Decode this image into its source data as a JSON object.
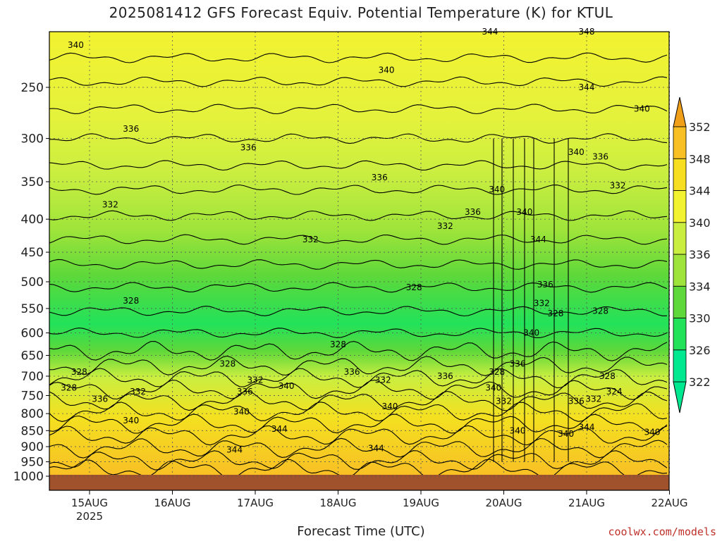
{
  "chart_data": {
    "type": "heatmap",
    "title": "2025081412 GFS Forecast Equiv. Potential Temperature (K) for KTUL",
    "xlabel": "Forecast Time (UTC)",
    "ylabel": "",
    "x_ticks": [
      "15AUG",
      "16AUG",
      "17AUG",
      "18AUG",
      "19AUG",
      "20AUG",
      "21AUG",
      "22AUG"
    ],
    "x_year_label": "2025",
    "y_ticks": [
      250,
      300,
      350,
      400,
      450,
      500,
      550,
      600,
      650,
      700,
      750,
      800,
      850,
      900,
      950,
      1000
    ],
    "ylim": [
      1000,
      200
    ],
    "y_scale": "log",
    "grid": true,
    "colorbar": {
      "levels": [
        322,
        326,
        330,
        334,
        336,
        340,
        344,
        348,
        352
      ],
      "colors": [
        "#00e890",
        "#22e25a",
        "#5ed83a",
        "#9ee43a",
        "#caee40",
        "#f2f230",
        "#f8de20",
        "#f8c024",
        "#f0a018"
      ],
      "position": "right"
    },
    "ground_color": "#a0522d",
    "contour_labels": [
      {
        "x": "14AUG 20Z",
        "y": 215,
        "text": "340"
      },
      {
        "x": "15AUG 12Z",
        "y": 290,
        "text": "336"
      },
      {
        "x": "15AUG 06Z",
        "y": 380,
        "text": "332"
      },
      {
        "x": "15AUG 12Z",
        "y": 535,
        "text": "328"
      },
      {
        "x": "14AUG 21Z",
        "y": 690,
        "text": "328"
      },
      {
        "x": "14AUG 18Z",
        "y": 730,
        "text": "328"
      },
      {
        "x": "15AUG 03Z",
        "y": 760,
        "text": "336"
      },
      {
        "x": "15AUG 14Z",
        "y": 740,
        "text": "332"
      },
      {
        "x": "15AUG 12Z",
        "y": 820,
        "text": "340"
      },
      {
        "x": "16AUG 16Z",
        "y": 670,
        "text": "328"
      },
      {
        "x": "16AUG 22Z",
        "y": 310,
        "text": "336"
      },
      {
        "x": "17AUG 16Z",
        "y": 430,
        "text": "332"
      },
      {
        "x": "17AUG 00Z",
        "y": 710,
        "text": "332"
      },
      {
        "x": "16AUG 21Z",
        "y": 740,
        "text": "336"
      },
      {
        "x": "17AUG 09Z",
        "y": 725,
        "text": "340"
      },
      {
        "x": "16AUG 20Z",
        "y": 795,
        "text": "340"
      },
      {
        "x": "17AUG 07Z",
        "y": 845,
        "text": "344"
      },
      {
        "x": "16AUG 18Z",
        "y": 910,
        "text": "344"
      },
      {
        "x": "18AUG 14Z",
        "y": 235,
        "text": "340"
      },
      {
        "x": "18AUG 12Z",
        "y": 345,
        "text": "336"
      },
      {
        "x": "18AUG 00Z",
        "y": 625,
        "text": "328"
      },
      {
        "x": "18AUG 22Z",
        "y": 510,
        "text": "328"
      },
      {
        "x": "18AUG 04Z",
        "y": 690,
        "text": "336"
      },
      {
        "x": "18AUG 13Z",
        "y": 710,
        "text": "332"
      },
      {
        "x": "18AUG 15Z",
        "y": 780,
        "text": "340"
      },
      {
        "x": "18AUG 11Z",
        "y": 905,
        "text": "344"
      },
      {
        "x": "19AUG 07Z",
        "y": 410,
        "text": "332"
      },
      {
        "x": "19AUG 15Z",
        "y": 390,
        "text": "336"
      },
      {
        "x": "19AUG 07Z",
        "y": 700,
        "text": "336"
      },
      {
        "x": "19AUG 20Z",
        "y": 205,
        "text": "344"
      },
      {
        "x": "19AUG 22Z",
        "y": 360,
        "text": "340"
      },
      {
        "x": "20AUG 06Z",
        "y": 390,
        "text": "340"
      },
      {
        "x": "20AUG 10Z",
        "y": 430,
        "text": "344"
      },
      {
        "x": "20AUG 12Z",
        "y": 505,
        "text": "336"
      },
      {
        "x": "20AUG 11Z",
        "y": 540,
        "text": "332"
      },
      {
        "x": "20AUG 15Z",
        "y": 560,
        "text": "328"
      },
      {
        "x": "20AUG 08Z",
        "y": 600,
        "text": "340"
      },
      {
        "x": "20AUG 04Z",
        "y": 670,
        "text": "336"
      },
      {
        "x": "19AUG 22Z",
        "y": 690,
        "text": "328"
      },
      {
        "x": "19AUG 21Z",
        "y": 730,
        "text": "340"
      },
      {
        "x": "20AUG 00Z",
        "y": 765,
        "text": "332"
      },
      {
        "x": "20AUG 04Z",
        "y": 850,
        "text": "340"
      },
      {
        "x": "21AUG 00Z",
        "y": 205,
        "text": "348"
      },
      {
        "x": "21AUG 00Z",
        "y": 250,
        "text": "344"
      },
      {
        "x": "21AUG 16Z",
        "y": 270,
        "text": "340"
      },
      {
        "x": "20AUG 21Z",
        "y": 315,
        "text": "340"
      },
      {
        "x": "21AUG 04Z",
        "y": 320,
        "text": "336"
      },
      {
        "x": "21AUG 09Z",
        "y": 355,
        "text": "332"
      },
      {
        "x": "21AUG 04Z",
        "y": 555,
        "text": "328"
      },
      {
        "x": "21AUG 06Z",
        "y": 700,
        "text": "328"
      },
      {
        "x": "21AUG 08Z",
        "y": 740,
        "text": "324"
      },
      {
        "x": "21AUG 02Z",
        "y": 760,
        "text": "332"
      },
      {
        "x": "20AUG 21Z",
        "y": 765,
        "text": "336"
      },
      {
        "x": "21AUG 00Z",
        "y": 840,
        "text": "344"
      },
      {
        "x": "20AUG 18Z",
        "y": 860,
        "text": "340"
      },
      {
        "x": "21AUG 19Z",
        "y": 855,
        "text": "340"
      }
    ]
  },
  "credit": "coolwx.com/models"
}
